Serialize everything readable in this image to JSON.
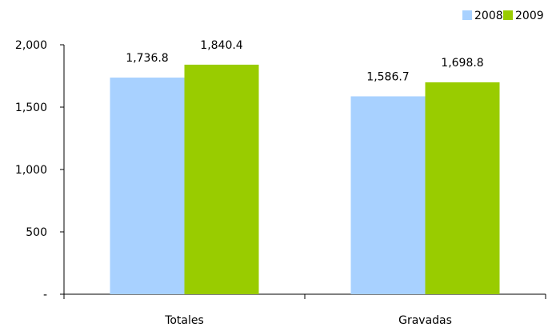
{
  "chart_data": {
    "type": "bar",
    "title": "",
    "xlabel": "",
    "ylabel": "",
    "categories": [
      "Totales",
      "Gravadas"
    ],
    "series": [
      {
        "name": "2008",
        "color": "#a8d1ff",
        "values": [
          1736.8,
          1586.7
        ],
        "labels": [
          "1,736.8",
          "1,586.7"
        ]
      },
      {
        "name": "2009",
        "color": "#99cc00",
        "values": [
          1840.4,
          1698.8
        ],
        "labels": [
          "1,840.4",
          "1,698.8"
        ]
      }
    ],
    "ylim": [
      0,
      2000
    ],
    "yticks": [
      0,
      500,
      1000,
      1500,
      2000
    ],
    "ytick_labels": [
      "-",
      "500",
      "1,000",
      "1,500",
      "2,000"
    ],
    "grid": false,
    "legend_position": "top-right"
  }
}
